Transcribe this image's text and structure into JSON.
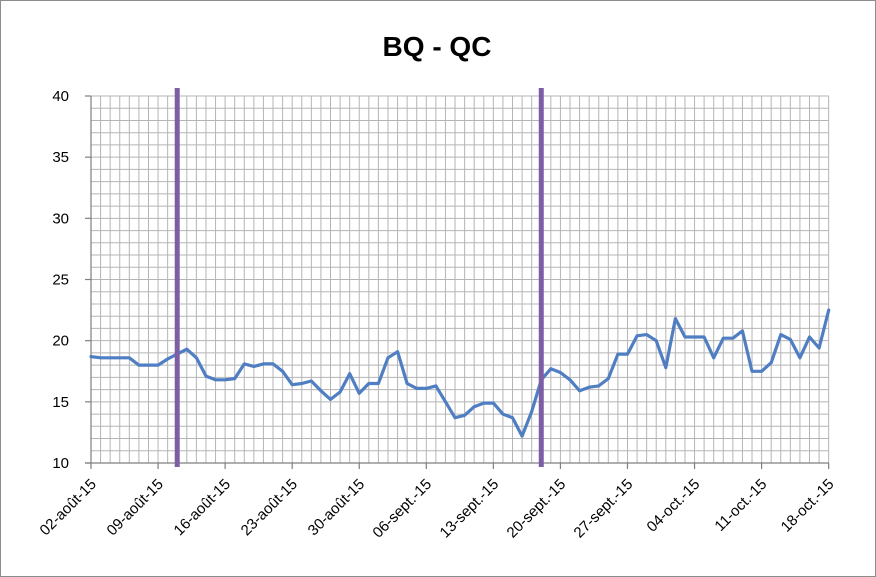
{
  "chart_data": {
    "type": "line",
    "title": "BQ - QC",
    "xlabel": "",
    "ylabel": "",
    "ylim": [
      10,
      40
    ],
    "yticks": [
      10,
      15,
      20,
      25,
      30,
      35,
      40
    ],
    "grid": true,
    "start_date": "2015-08-02",
    "x_tick_labels": [
      "02-août-15",
      "09-août-15",
      "16-août-15",
      "23-août-15",
      "30-août-15",
      "06-sept.-15",
      "13-sept.-15",
      "20-sept.-15",
      "27-sept.-15",
      "04-oct.-15",
      "11-oct.-15",
      "18-oct.-15"
    ],
    "markers": [
      {
        "date": "2015-08-11"
      },
      {
        "date": "2015-09-18"
      }
    ],
    "colors": {
      "line": "#4f7ec3",
      "marker": "#7d5ea4",
      "grid": "#b5b5b5",
      "axis": "#7f7f7f"
    },
    "series": [
      {
        "points": [
          [
            "2015-08-02",
            18.7
          ],
          [
            "2015-08-03",
            18.6
          ],
          [
            "2015-08-04",
            18.6
          ],
          [
            "2015-08-05",
            18.6
          ],
          [
            "2015-08-06",
            18.6
          ],
          [
            "2015-08-07",
            18.0
          ],
          [
            "2015-08-08",
            18.0
          ],
          [
            "2015-08-09",
            18.0
          ],
          [
            "2015-08-10",
            18.5
          ],
          [
            "2015-08-11",
            18.9
          ],
          [
            "2015-08-12",
            19.3
          ],
          [
            "2015-08-13",
            18.6
          ],
          [
            "2015-08-14",
            17.1
          ],
          [
            "2015-08-15",
            16.8
          ],
          [
            "2015-08-16",
            16.8
          ],
          [
            "2015-08-17",
            16.9
          ],
          [
            "2015-08-18",
            18.1
          ],
          [
            "2015-08-19",
            17.9
          ],
          [
            "2015-08-20",
            18.1
          ],
          [
            "2015-08-21",
            18.1
          ],
          [
            "2015-08-22",
            17.5
          ],
          [
            "2015-08-23",
            16.4
          ],
          [
            "2015-08-24",
            16.5
          ],
          [
            "2015-08-25",
            16.7
          ],
          [
            "2015-08-26",
            15.9
          ],
          [
            "2015-08-27",
            15.2
          ],
          [
            "2015-08-28",
            15.8
          ],
          [
            "2015-08-29",
            17.3
          ],
          [
            "2015-08-30",
            15.7
          ],
          [
            "2015-08-31",
            16.5
          ],
          [
            "2015-09-01",
            16.5
          ],
          [
            "2015-09-02",
            18.6
          ],
          [
            "2015-09-03",
            19.1
          ],
          [
            "2015-09-04",
            16.5
          ],
          [
            "2015-09-05",
            16.1
          ],
          [
            "2015-09-06",
            16.1
          ],
          [
            "2015-09-07",
            16.3
          ],
          [
            "2015-09-08",
            15.0
          ],
          [
            "2015-09-09",
            13.7
          ],
          [
            "2015-09-10",
            13.9
          ],
          [
            "2015-09-11",
            14.6
          ],
          [
            "2015-09-12",
            14.9
          ],
          [
            "2015-09-13",
            14.9
          ],
          [
            "2015-09-14",
            14.0
          ],
          [
            "2015-09-15",
            13.7
          ],
          [
            "2015-09-16",
            12.2
          ],
          [
            "2015-09-17",
            14.2
          ],
          [
            "2015-09-18",
            16.8
          ],
          [
            "2015-09-19",
            17.7
          ],
          [
            "2015-09-20",
            17.4
          ],
          [
            "2015-09-21",
            16.8
          ],
          [
            "2015-09-22",
            15.9
          ],
          [
            "2015-09-23",
            16.2
          ],
          [
            "2015-09-24",
            16.3
          ],
          [
            "2015-09-25",
            16.9
          ],
          [
            "2015-09-26",
            18.9
          ],
          [
            "2015-09-27",
            18.9
          ],
          [
            "2015-09-28",
            20.4
          ],
          [
            "2015-09-29",
            20.5
          ],
          [
            "2015-09-30",
            20.0
          ],
          [
            "2015-10-01",
            17.8
          ],
          [
            "2015-10-02",
            21.8
          ],
          [
            "2015-10-03",
            20.3
          ],
          [
            "2015-10-04",
            20.3
          ],
          [
            "2015-10-05",
            20.3
          ],
          [
            "2015-10-06",
            18.6
          ],
          [
            "2015-10-07",
            20.2
          ],
          [
            "2015-10-08",
            20.2
          ],
          [
            "2015-10-09",
            20.8
          ],
          [
            "2015-10-10",
            17.5
          ],
          [
            "2015-10-11",
            17.5
          ],
          [
            "2015-10-12",
            18.2
          ],
          [
            "2015-10-13",
            20.5
          ],
          [
            "2015-10-14",
            20.1
          ],
          [
            "2015-10-15",
            18.6
          ],
          [
            "2015-10-16",
            20.3
          ],
          [
            "2015-10-17",
            19.4
          ],
          [
            "2015-10-18",
            22.5
          ]
        ]
      }
    ]
  }
}
